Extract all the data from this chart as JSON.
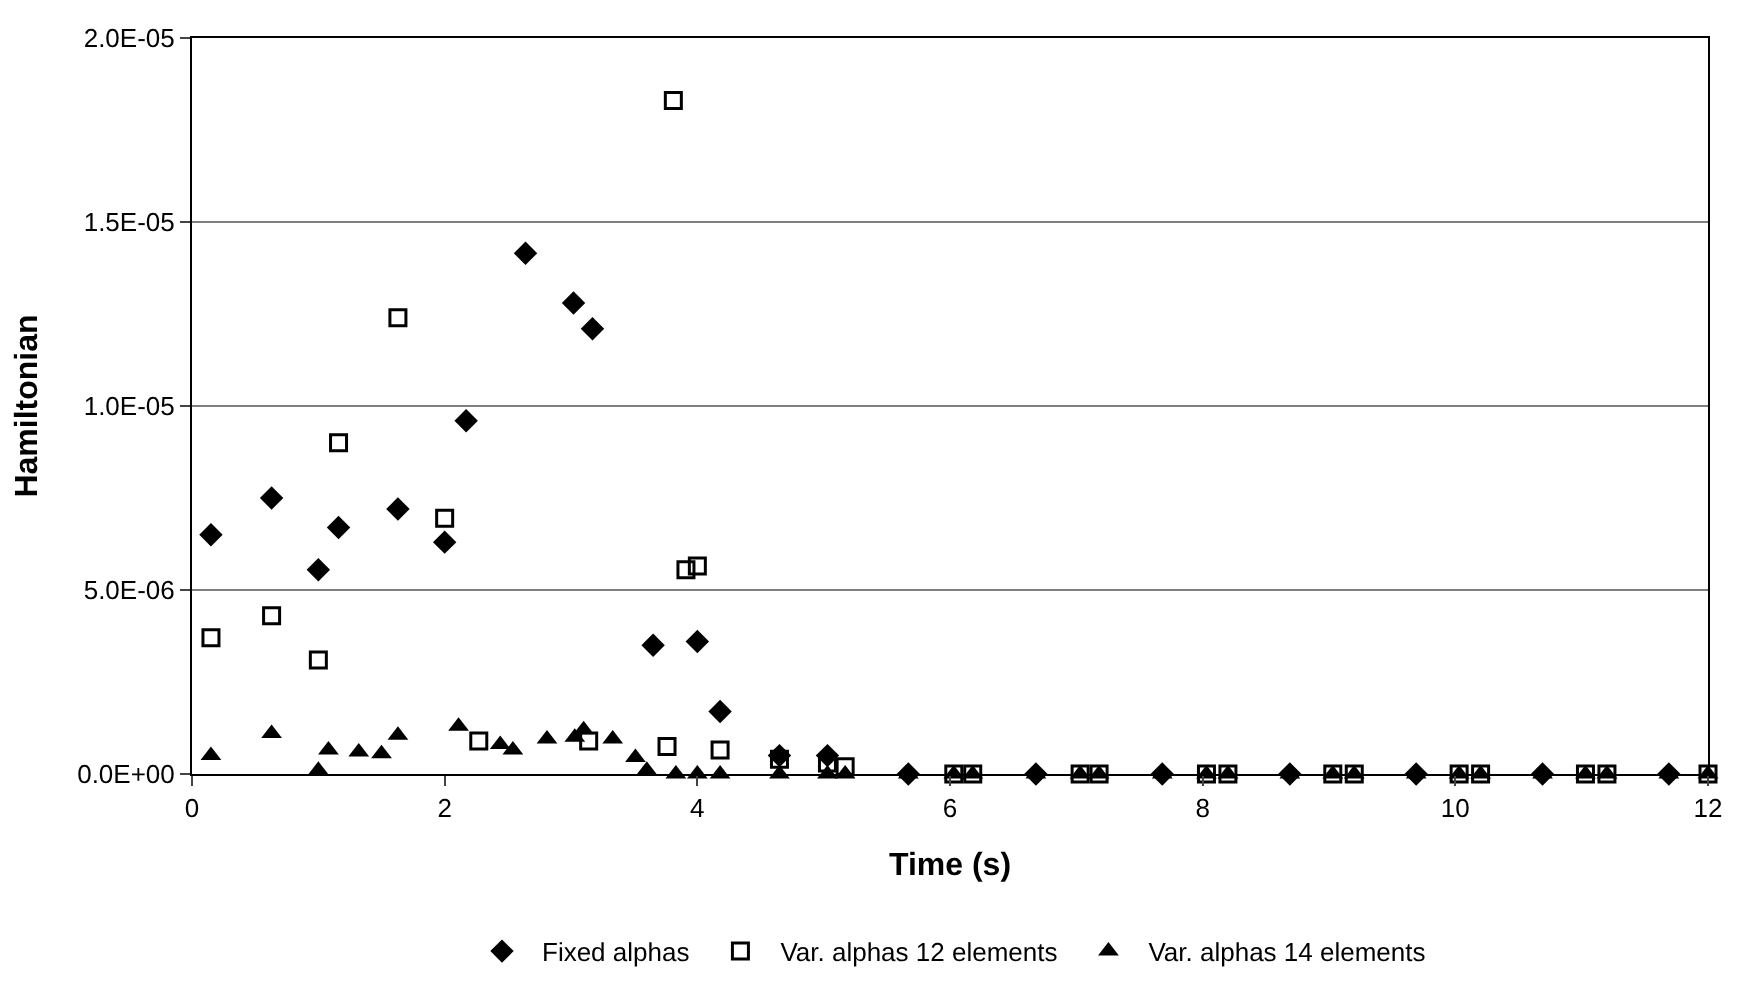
{
  "chart_data": {
    "type": "scatter",
    "xlabel": "Time (s)",
    "ylabel": "Hamiltonian",
    "xlim": [
      0,
      12
    ],
    "xticks": [
      0,
      2,
      4,
      6,
      8,
      10,
      12
    ],
    "ylim": [
      0,
      2e-05
    ],
    "yticks": [
      {
        "value": 0,
        "label": "0.0E+00"
      },
      {
        "value": 5e-06,
        "label": "5.0E-06"
      },
      {
        "value": 1e-05,
        "label": "1.0E-05"
      },
      {
        "value": 1.5e-05,
        "label": "1.5E-05"
      },
      {
        "value": 2e-05,
        "label": "2.0E-05"
      }
    ],
    "grid": "y",
    "legend": "bottom",
    "series": [
      {
        "name": "Fixed alphas",
        "color": "#000000",
        "marker": "diamond",
        "x": [
          0.15,
          0.63,
          1.0,
          1.16,
          1.63,
          2.0,
          2.17,
          2.64,
          3.02,
          3.17,
          3.65,
          4.0,
          4.18,
          4.65,
          5.03,
          5.67,
          6.68,
          7.68,
          8.69,
          9.69,
          10.69,
          11.69
        ],
        "values": [
          6.5e-06,
          7.5e-06,
          5.55e-06,
          6.7e-06,
          7.2e-06,
          6.3e-06,
          9.6e-06,
          1.415e-05,
          1.28e-05,
          1.21e-05,
          3.5e-06,
          3.6e-06,
          1.7e-06,
          5e-07,
          5e-07,
          0,
          0,
          0,
          0,
          0,
          0,
          0
        ]
      },
      {
        "name": "Var. alphas 12 elements",
        "color": "#000000",
        "marker": "square",
        "x": [
          0.15,
          0.63,
          1.0,
          1.16,
          1.63,
          2.0,
          2.27,
          3.14,
          3.76,
          3.81,
          3.91,
          4.0,
          4.18,
          4.65,
          5.03,
          5.17,
          6.03,
          6.18,
          7.03,
          7.18,
          8.03,
          8.2,
          9.03,
          9.2,
          10.03,
          10.2,
          11.03,
          11.2,
          12.0
        ],
        "values": [
          3.7e-06,
          4.3e-06,
          3.1e-06,
          9e-06,
          1.24e-05,
          6.95e-06,
          9e-07,
          9e-07,
          7.5e-07,
          1.83e-05,
          5.55e-06,
          5.65e-06,
          6.5e-07,
          4e-07,
          3e-07,
          2e-07,
          0,
          0,
          0,
          0,
          0,
          0,
          0,
          0,
          0,
          0,
          0,
          0,
          0
        ]
      },
      {
        "name": "Var. alphas 14 elements",
        "color": "#000000",
        "marker": "triangle",
        "x": [
          0.15,
          0.63,
          1.0,
          1.08,
          1.32,
          1.5,
          1.63,
          2.11,
          2.44,
          2.54,
          2.81,
          3.03,
          3.1,
          3.33,
          3.51,
          3.6,
          3.83,
          4.0,
          4.18,
          4.65,
          5.03,
          5.17,
          5.67,
          6.03,
          6.18,
          6.68,
          7.03,
          7.18,
          7.68,
          8.03,
          8.2,
          8.69,
          9.03,
          9.2,
          9.69,
          10.03,
          10.2,
          10.69,
          11.03,
          11.2,
          11.69,
          12.0
        ],
        "values": [
          5e-07,
          1.1e-06,
          1e-07,
          6.5e-07,
          6e-07,
          5.5e-07,
          1.05e-06,
          1.3e-06,
          8e-07,
          6.5e-07,
          9.5e-07,
          1e-06,
          1.2e-06,
          9.5e-07,
          4.5e-07,
          1e-07,
          0,
          0,
          0,
          0,
          0,
          0,
          0,
          0,
          0,
          0,
          0,
          0,
          0,
          0,
          0,
          0,
          0,
          0,
          0,
          0,
          0,
          0,
          0,
          0,
          0,
          0
        ]
      }
    ]
  }
}
